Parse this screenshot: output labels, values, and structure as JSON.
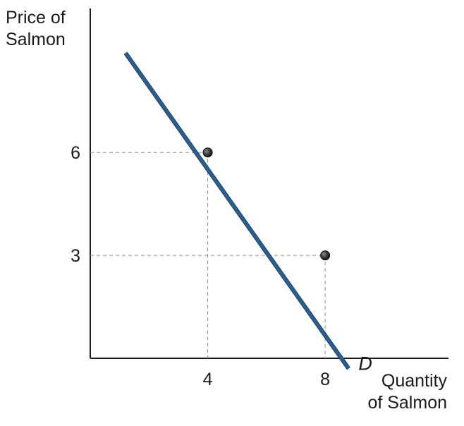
{
  "chart_data": {
    "type": "line",
    "xlabel": "Quantity\nof Salmon",
    "ylabel": "Price of\nSalmon",
    "xlim": [
      0,
      12.2
    ],
    "ylim": [
      0,
      10.2
    ],
    "x_ticks": [
      {
        "value": 4,
        "label": "4"
      },
      {
        "value": 8,
        "label": "8"
      }
    ],
    "y_ticks": [
      {
        "value": 6,
        "label": "6"
      },
      {
        "value": 3,
        "label": "3"
      }
    ],
    "series": [
      {
        "name": "D",
        "x": [
          1.2,
          8.8
        ],
        "y": [
          8.9,
          -0.3
        ],
        "color": "#2b5f8f"
      }
    ],
    "points": [
      {
        "x": 4,
        "y": 6
      },
      {
        "x": 8,
        "y": 3
      }
    ],
    "reference_lines": "dashed",
    "grid": false,
    "legend": "none"
  }
}
